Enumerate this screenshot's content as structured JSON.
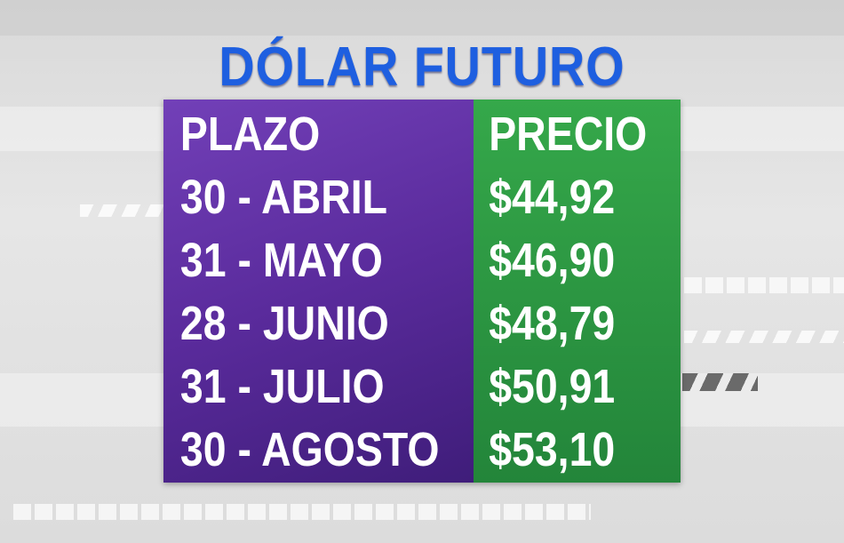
{
  "title": "DÓLAR FUTURO",
  "table": {
    "headers": {
      "plazo": "PLAZO",
      "precio": "PRECIO"
    },
    "rows": [
      {
        "plazo": "30 - ABRIL",
        "precio": "$44,92"
      },
      {
        "plazo": "31 - MAYO",
        "precio": "$46,90"
      },
      {
        "plazo": "28 - JUNIO",
        "precio": "$48,79"
      },
      {
        "plazo": "31 - JULIO",
        "precio": "$50,91"
      },
      {
        "plazo": "30 - AGOSTO",
        "precio": "$53,10"
      }
    ]
  },
  "colors": {
    "title": "#1e5fe0",
    "plazo_column": "#5a2b9c",
    "precio_column": "#2a9440",
    "text": "#ffffff"
  }
}
